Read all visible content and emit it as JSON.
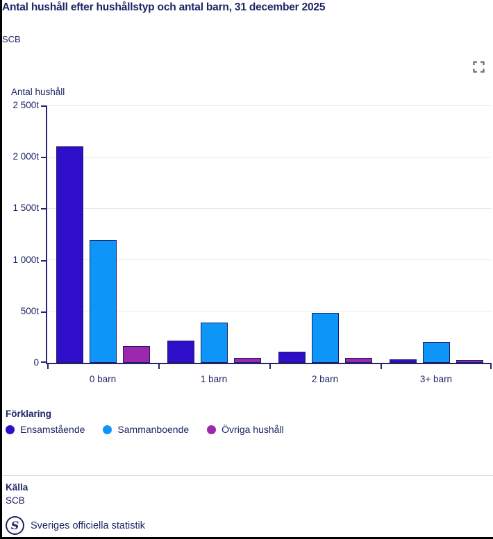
{
  "header": {
    "title": "Antal hushåll efter hushållstyp och antal barn, 31 december 2025",
    "subtitle": "SCB"
  },
  "toolbar": {
    "fullscreen_icon": "fullscreen-expand-icon",
    "fullscreen_icon_color": "#66696c"
  },
  "chart_data": {
    "type": "bar",
    "title": "Antal hushåll efter hushållstyp och antal barn, 31 december 2025",
    "subtitle": "SCB",
    "xlabel": "",
    "ylabel": "Antal hushåll",
    "unit_suffix": "t",
    "categories": [
      "0 barn",
      "1 barn",
      "2 barn",
      "3+ barn"
    ],
    "series": [
      {
        "name": "Ensamstående",
        "color": "#2e0ec8",
        "values": [
          2100,
          215,
          110,
          35
        ]
      },
      {
        "name": "Sammanboende",
        "color": "#0d96f7",
        "values": [
          1190,
          390,
          485,
          200
        ]
      },
      {
        "name": "Övriga hushåll",
        "color": "#9c28ad",
        "values": [
          165,
          50,
          45,
          30
        ]
      }
    ],
    "ylim": [
      0,
      2500
    ],
    "yticks": [
      {
        "value": 0,
        "label": "0"
      },
      {
        "value": 500,
        "label": "500t"
      },
      {
        "value": 1000,
        "label": "1 000t"
      },
      {
        "value": 1500,
        "label": "1 500t"
      },
      {
        "value": 2000,
        "label": "2 000t"
      },
      {
        "value": 2500,
        "label": "2 500t"
      }
    ],
    "grid": true,
    "legend_position": "bottom",
    "bar_border_color": "#1b1e66",
    "axis_color": "#23266d"
  },
  "legend": {
    "heading": "Förklaring"
  },
  "footer": {
    "source_heading": "Källa",
    "source": "SCB",
    "logo_icon": "scb-s-circle-icon",
    "logo_letter": "S",
    "official_statistics_label": "Sveriges officiella statistik"
  }
}
